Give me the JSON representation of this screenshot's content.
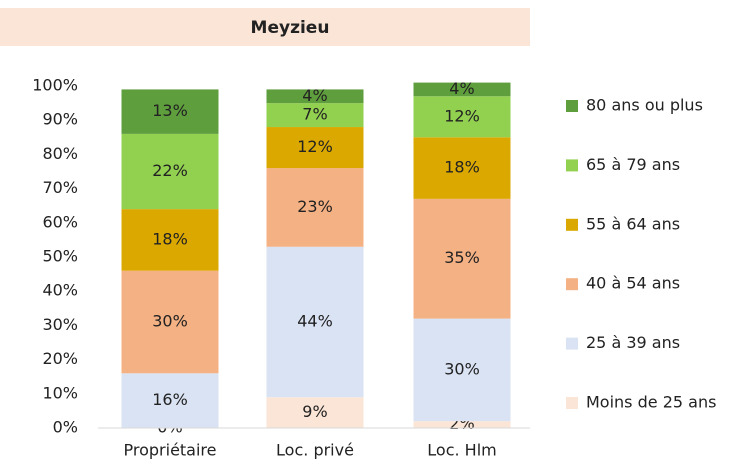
{
  "chart_data": {
    "type": "stacked_bar",
    "title": "Meyzieu",
    "categories": [
      "Propriétaire",
      "Loc. privé",
      "Loc. Hlm"
    ],
    "series": [
      {
        "name": "Moins de 25 ans",
        "color": "#fbe5d6",
        "values": [
          0,
          9,
          2
        ],
        "value_labels": [
          "0%",
          "9%",
          "2%"
        ]
      },
      {
        "name": "25 à 39 ans",
        "color": "#dae3f3",
        "values": [
          16,
          44,
          30
        ],
        "value_labels": [
          "16%",
          "44%",
          "30%"
        ]
      },
      {
        "name": "40 à 54 ans",
        "color": "#f4b183",
        "values": [
          30,
          23,
          35
        ],
        "value_labels": [
          "30%",
          "23%",
          "35%"
        ]
      },
      {
        "name": "55 à 64 ans",
        "color": "#dba800",
        "values": [
          18,
          12,
          18
        ],
        "value_labels": [
          "18%",
          "12%",
          "18%"
        ]
      },
      {
        "name": "65 à 79 ans",
        "color": "#92d050",
        "values": [
          22,
          7,
          12
        ],
        "value_labels": [
          "22%",
          "7%",
          "12%"
        ]
      },
      {
        "name": "80 ans ou plus",
        "color": "#5f9e3d",
        "values": [
          13,
          4,
          4
        ],
        "value_labels": [
          "13%",
          "4%",
          "4%"
        ]
      }
    ],
    "ylim": [
      0,
      100
    ],
    "yticks": [
      {
        "value": 0,
        "label": "0%"
      },
      {
        "value": 10,
        "label": "10%"
      },
      {
        "value": 20,
        "label": "20%"
      },
      {
        "value": 30,
        "label": "30%"
      },
      {
        "value": 40,
        "label": "40%"
      },
      {
        "value": 50,
        "label": "50%"
      },
      {
        "value": 60,
        "label": "60%"
      },
      {
        "value": 70,
        "label": "70%"
      },
      {
        "value": 80,
        "label": "80%"
      },
      {
        "value": 90,
        "label": "90%"
      },
      {
        "value": 100,
        "label": "100%"
      }
    ],
    "legend": "right"
  }
}
